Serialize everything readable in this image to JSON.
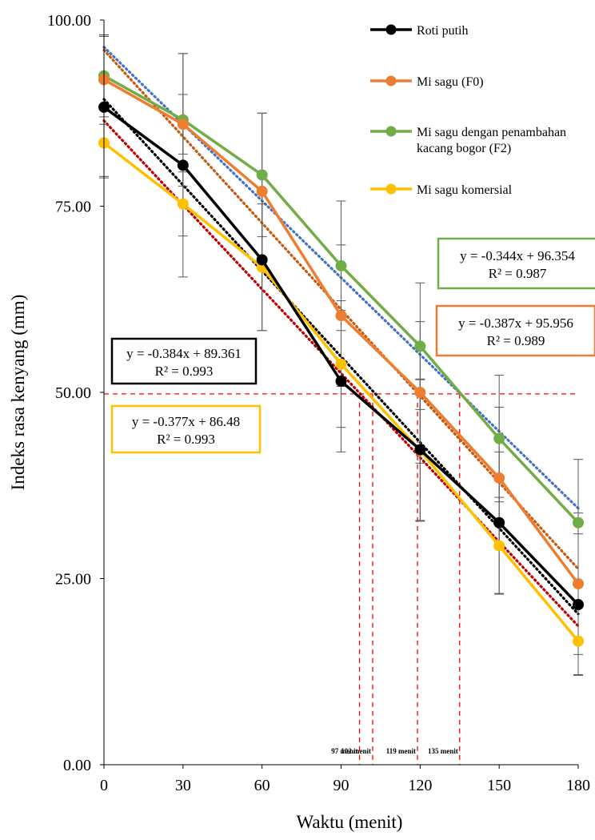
{
  "chart_data": {
    "type": "line",
    "xlabel": "Waktu (menit)",
    "ylabel": "Indeks rasa kenyang (mm)",
    "x": [
      0,
      30,
      60,
      90,
      120,
      150,
      180
    ],
    "x_tick_labels": [
      "0",
      "30",
      "60",
      "90",
      "120",
      "150",
      "180"
    ],
    "xlim": [
      0,
      180
    ],
    "ylim": [
      0,
      100
    ],
    "y_tick_labels": [
      "0.00",
      "25.00",
      "50.00",
      "75.00",
      "100.00"
    ],
    "grid": false,
    "legend_position": "top-right",
    "series": [
      {
        "name": "Roti putih",
        "color": "#000000",
        "values": [
          88.3,
          80.5,
          67.8,
          51.5,
          42.3,
          32.5,
          21.5
        ],
        "error": [
          9.5,
          15.0,
          9.5,
          9.5,
          9.5,
          9.5,
          9.5
        ],
        "trendline": {
          "slope": -0.384,
          "intercept": 89.361,
          "label": "y = -0.384x + 89.361",
          "r2_label": "R² = 0.993",
          "box_color": "#000000"
        }
      },
      {
        "name": "Mi sagu (F0)",
        "color": "#ED7D31",
        "values": [
          92.0,
          86.0,
          77.0,
          60.3,
          50.0,
          38.5,
          24.3
        ],
        "error": [
          6.0,
          4.0,
          10.5,
          9.5,
          9.5,
          9.5,
          9.5
        ],
        "trendline": {
          "slope": -0.387,
          "intercept": 95.956,
          "label": "y = -0.387x + 95.956",
          "r2_label": "R² = 0.989",
          "box_color": "#ED7D31"
        }
      },
      {
        "name": "Mi sagu dengan penambahan kacang bogor (F2)",
        "legend_lines": [
          "Mi sagu dengan penambahan",
          "kacang bogor (F2)"
        ],
        "color": "#70AD47",
        "values": [
          92.5,
          86.6,
          79.2,
          67.0,
          56.2,
          43.8,
          32.5
        ],
        "error": [
          5.5,
          8.9,
          8.3,
          8.7,
          8.5,
          8.5,
          8.5
        ],
        "trendline": {
          "slope": -0.344,
          "intercept": 96.354,
          "label": "y = -0.344x + 96.354",
          "r2_label": "R² = 0.987",
          "box_color": "#70AD47"
        }
      },
      {
        "name": "Mi sagu komersial",
        "color": "#FFC000",
        "values": [
          83.5,
          75.3,
          66.8,
          53.8,
          42.2,
          29.4,
          16.6
        ],
        "error": [
          4.5,
          4.3,
          8.5,
          8.5,
          9.5,
          6.5,
          4.5
        ],
        "trendline": {
          "slope": -0.377,
          "intercept": 86.48,
          "label": "y = -0.377x + 86.48",
          "r2_label": "R² = 0.993",
          "box_color": "#FFC000"
        }
      }
    ],
    "trendline_colors": [
      "#000000",
      "#C55A11",
      "#4472C4",
      "#C00000"
    ],
    "reference_line": {
      "y": 49.8,
      "color": "#FF0000"
    },
    "cutoffs": [
      {
        "x": 97,
        "label": "97 menit"
      },
      {
        "x": 102,
        "label": "102 menit"
      },
      {
        "x": 119,
        "label": "119 menit"
      },
      {
        "x": 135,
        "label": "135 menit"
      }
    ]
  }
}
